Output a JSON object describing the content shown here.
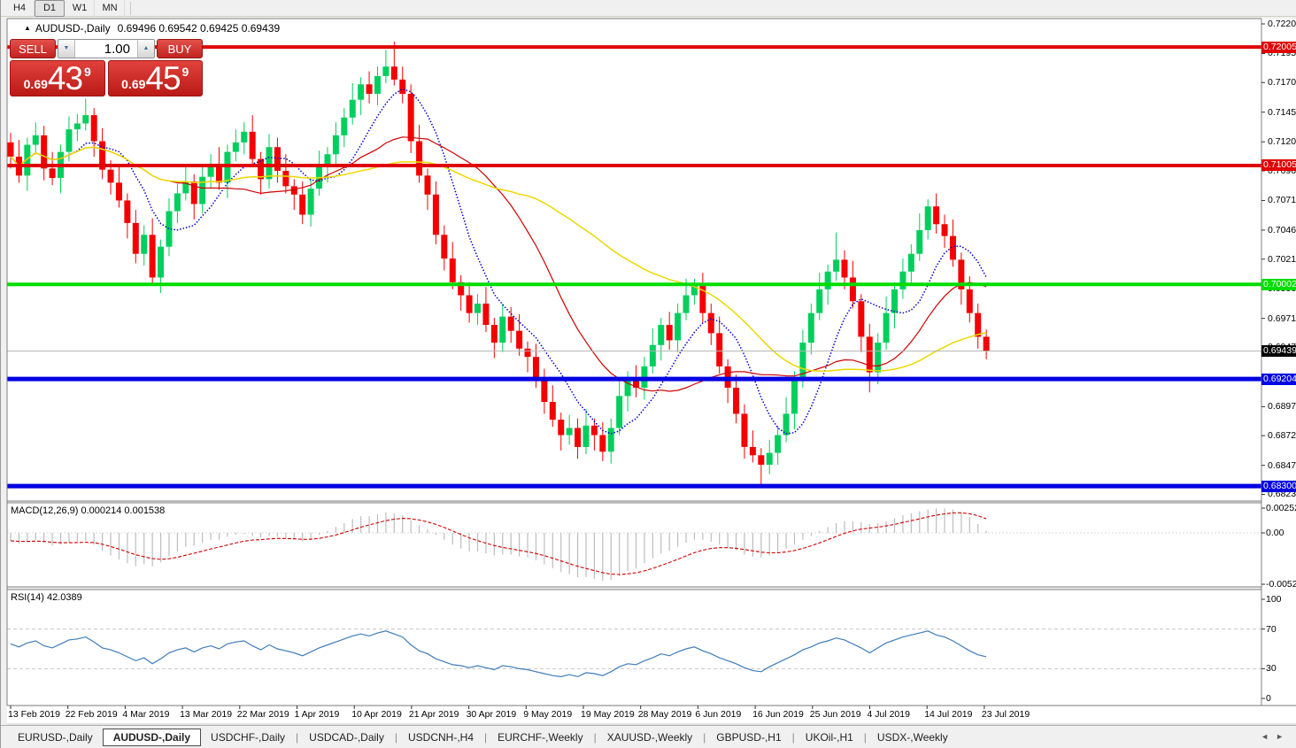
{
  "toolbar": {
    "timeframes": [
      {
        "label": "H4",
        "active": false
      },
      {
        "label": "D1",
        "active": true
      },
      {
        "label": "W1",
        "active": false
      },
      {
        "label": "MN",
        "active": false
      }
    ]
  },
  "chart_title": {
    "marker": "▲",
    "symbol": "AUDUSD-,Daily",
    "ohlc": "0.69496 0.69542 0.69425 0.69439"
  },
  "indicators": {
    "macd_label": "MACD(12,26,9) 0.000214 0.001538",
    "rsi_label": "RSI(14) 42.0389"
  },
  "trade_panel": {
    "sell_label": "SELL",
    "buy_label": "BUY",
    "volume": "1.00",
    "spinner_down": "▼",
    "spinner_up": "▲",
    "sell_price": {
      "prefix": "0.69",
      "main": "43",
      "sup": "9"
    },
    "buy_price": {
      "prefix": "0.69",
      "main": "45",
      "sup": "9"
    }
  },
  "tabs": {
    "items": [
      {
        "label": "EURUSD-,Daily",
        "active": false
      },
      {
        "label": "AUDUSD-,Daily",
        "active": true
      },
      {
        "label": "USDCHF-,Daily",
        "active": false
      },
      {
        "label": "USDCAD-,Daily",
        "active": false
      },
      {
        "label": "USDCNH-,H4",
        "active": false
      },
      {
        "label": "EURCHF-,Weekly",
        "active": false
      },
      {
        "label": "XAUUSD-,Weekly",
        "active": false
      },
      {
        "label": "GBPUSD-,H1",
        "active": false
      },
      {
        "label": "UKOil-,H1",
        "active": false
      },
      {
        "label": "USDX-,Weekly",
        "active": false
      }
    ],
    "scroll_left": "◄",
    "scroll_right": "►"
  },
  "chart_data": {
    "type": "candlestick",
    "symbol": "AUDUSD",
    "timeframe": "Daily",
    "colors": {
      "bull": "#00cf5d",
      "bear": "#f40000",
      "ma_fast": "#0000c8",
      "ma_mid": "#d00000",
      "ma_slow": "#ecd800",
      "macd_hist": "#bdbdbd",
      "macd_signal": "#d00000",
      "rsi": "#3f7cba",
      "level_red": "#e00000",
      "level_green": "#00dd00",
      "level_blue": "#0000e2",
      "current_line": "#b4b4b4",
      "current_badge": "#000000"
    },
    "y_ticks": [
      "0.72200",
      "0.71950",
      "0.71705",
      "0.71455",
      "0.71205",
      "0.70960",
      "0.70710",
      "0.70460",
      "0.70215",
      "0.69965",
      "0.69715",
      "0.69470",
      "0.69220",
      "0.68970",
      "0.68725",
      "0.68475",
      "0.68230"
    ],
    "x_tick_labels": [
      "13 Feb 2019",
      "22 Feb 2019",
      "4 Mar 2019",
      "13 Mar 2019",
      "22 Mar 2019",
      "1 Apr 2019",
      "10 Apr 2019",
      "21 Apr 2019",
      "30 Apr 2019",
      "9 May 2019",
      "19 May 2019",
      "28 May 2019",
      "6 Jun 2019",
      "16 Jun 2019",
      "25 Jun 2019",
      "4 Jul 2019",
      "14 Jul 2019",
      "23 Jul 2019"
    ],
    "price_levels": [
      {
        "label": "0.72005",
        "price": 0.72005,
        "color": "#e00000",
        "width": 4
      },
      {
        "label": "0.71005",
        "price": 0.71005,
        "color": "#e00000",
        "width": 4
      },
      {
        "label": "0.70002",
        "price": 0.70002,
        "color": "#00dd00",
        "width": 4
      },
      {
        "label": "0.69204",
        "price": 0.69204,
        "color": "#0000e2",
        "width": 5
      },
      {
        "label": "0.68300",
        "price": 0.683,
        "color": "#0000e2",
        "width": 5
      }
    ],
    "current_price": {
      "label": "0.69439",
      "price": 0.69439
    },
    "moving_averages": [
      {
        "period": 8,
        "color": "#0000c8",
        "style": "dotted"
      },
      {
        "period": 20,
        "color": "#d00000",
        "style": "solid"
      },
      {
        "period": 45,
        "color": "#ecd800",
        "style": "solid"
      }
    ],
    "candles": [
      [
        0.712,
        0.7128,
        0.7098,
        0.7108
      ],
      [
        0.7108,
        0.7122,
        0.7086,
        0.7092
      ],
      [
        0.7092,
        0.7124,
        0.7079,
        0.7118
      ],
      [
        0.7118,
        0.7137,
        0.711,
        0.7126
      ],
      [
        0.7126,
        0.7134,
        0.7088,
        0.7098
      ],
      [
        0.7098,
        0.7112,
        0.7084,
        0.709
      ],
      [
        0.709,
        0.7118,
        0.7077,
        0.7112
      ],
      [
        0.7112,
        0.7142,
        0.7104,
        0.7131
      ],
      [
        0.7131,
        0.7144,
        0.7121,
        0.7136
      ],
      [
        0.7136,
        0.7157,
        0.713,
        0.7143
      ],
      [
        0.7143,
        0.7149,
        0.7108,
        0.7121
      ],
      [
        0.7121,
        0.7132,
        0.7089,
        0.7097
      ],
      [
        0.7097,
        0.7105,
        0.7076,
        0.7086
      ],
      [
        0.7086,
        0.71,
        0.7065,
        0.7071
      ],
      [
        0.7071,
        0.7077,
        0.7039,
        0.7052
      ],
      [
        0.7052,
        0.7063,
        0.7018,
        0.7026
      ],
      [
        0.7026,
        0.705,
        0.7016,
        0.7042
      ],
      [
        0.7042,
        0.7056,
        0.7,
        0.7006
      ],
      [
        0.7006,
        0.7038,
        0.6993,
        0.7032
      ],
      [
        0.7032,
        0.7073,
        0.7024,
        0.7062
      ],
      [
        0.7062,
        0.7085,
        0.7052,
        0.7077
      ],
      [
        0.7077,
        0.7101,
        0.7071,
        0.7087
      ],
      [
        0.7087,
        0.7093,
        0.7055,
        0.7068
      ],
      [
        0.7068,
        0.7102,
        0.706,
        0.7091
      ],
      [
        0.7091,
        0.711,
        0.7081,
        0.7102
      ],
      [
        0.7102,
        0.7116,
        0.708,
        0.7086
      ],
      [
        0.7086,
        0.7118,
        0.7073,
        0.7112
      ],
      [
        0.7112,
        0.7131,
        0.7104,
        0.712
      ],
      [
        0.712,
        0.7137,
        0.711,
        0.7129
      ],
      [
        0.7129,
        0.7143,
        0.71,
        0.7106
      ],
      [
        0.7106,
        0.7112,
        0.7076,
        0.7089
      ],
      [
        0.7089,
        0.7127,
        0.7081,
        0.7116
      ],
      [
        0.7116,
        0.7124,
        0.7086,
        0.7096
      ],
      [
        0.7096,
        0.711,
        0.7077,
        0.7083
      ],
      [
        0.7083,
        0.7089,
        0.7063,
        0.7076
      ],
      [
        0.7076,
        0.7087,
        0.7051,
        0.7059
      ],
      [
        0.7059,
        0.7089,
        0.7049,
        0.7081
      ],
      [
        0.7081,
        0.7113,
        0.7075,
        0.7099
      ],
      [
        0.7099,
        0.7116,
        0.7086,
        0.711
      ],
      [
        0.711,
        0.7137,
        0.7102,
        0.7126
      ],
      [
        0.7126,
        0.7149,
        0.7116,
        0.7141
      ],
      [
        0.7141,
        0.717,
        0.7135,
        0.7156
      ],
      [
        0.7156,
        0.7175,
        0.7143,
        0.7169
      ],
      [
        0.7169,
        0.718,
        0.7153,
        0.7161
      ],
      [
        0.7161,
        0.7184,
        0.7151,
        0.7176
      ],
      [
        0.7176,
        0.7198,
        0.717,
        0.7184
      ],
      [
        0.7184,
        0.7205,
        0.7168,
        0.7173
      ],
      [
        0.7173,
        0.7184,
        0.7153,
        0.7161
      ],
      [
        0.7161,
        0.7169,
        0.7111,
        0.7121
      ],
      [
        0.7121,
        0.7135,
        0.7086,
        0.7092
      ],
      [
        0.7092,
        0.7098,
        0.7063,
        0.7076
      ],
      [
        0.7076,
        0.7087,
        0.7034,
        0.7042
      ],
      [
        0.7042,
        0.705,
        0.7012,
        0.7022
      ],
      [
        0.7022,
        0.7036,
        0.6996,
        0.7002
      ],
      [
        0.7002,
        0.7008,
        0.6978,
        0.6991
      ],
      [
        0.6991,
        0.7002,
        0.6968,
        0.6976
      ],
      [
        0.6976,
        0.6992,
        0.6966,
        0.6984
      ],
      [
        0.6984,
        0.6998,
        0.696,
        0.6966
      ],
      [
        0.6966,
        0.6972,
        0.6938,
        0.6951
      ],
      [
        0.6951,
        0.6984,
        0.6943,
        0.6973
      ],
      [
        0.6973,
        0.6981,
        0.6951,
        0.6961
      ],
      [
        0.6961,
        0.6975,
        0.694,
        0.6946
      ],
      [
        0.6946,
        0.6952,
        0.6926,
        0.6939
      ],
      [
        0.6939,
        0.695,
        0.6913,
        0.6921
      ],
      [
        0.6921,
        0.6929,
        0.6891,
        0.6901
      ],
      [
        0.6901,
        0.6915,
        0.688,
        0.6886
      ],
      [
        0.6886,
        0.6892,
        0.686,
        0.6873
      ],
      [
        0.6873,
        0.689,
        0.6865,
        0.6879
      ],
      [
        0.6879,
        0.6887,
        0.6853,
        0.6863
      ],
      [
        0.6863,
        0.6895,
        0.6857,
        0.6881
      ],
      [
        0.6881,
        0.6887,
        0.686,
        0.6873
      ],
      [
        0.6873,
        0.6884,
        0.6851,
        0.6859
      ],
      [
        0.6859,
        0.6887,
        0.6849,
        0.6879
      ],
      [
        0.6879,
        0.692,
        0.6873,
        0.6906
      ],
      [
        0.6906,
        0.6927,
        0.6893,
        0.6921
      ],
      [
        0.6921,
        0.6932,
        0.6905,
        0.6913
      ],
      [
        0.6913,
        0.6939,
        0.6903,
        0.6931
      ],
      [
        0.6931,
        0.6963,
        0.6925,
        0.6949
      ],
      [
        0.6949,
        0.6972,
        0.6936,
        0.6966
      ],
      [
        0.6966,
        0.6977,
        0.6945,
        0.6953
      ],
      [
        0.6953,
        0.6984,
        0.6943,
        0.6976
      ],
      [
        0.6976,
        0.7005,
        0.697,
        0.6991
      ],
      [
        0.6991,
        0.7005,
        0.6983,
        0.6999
      ],
      [
        0.6999,
        0.701,
        0.6968,
        0.6976
      ],
      [
        0.6976,
        0.6984,
        0.6949,
        0.6959
      ],
      [
        0.6959,
        0.6973,
        0.6925,
        0.6931
      ],
      [
        0.6931,
        0.6937,
        0.69,
        0.6913
      ],
      [
        0.6913,
        0.6924,
        0.6883,
        0.6891
      ],
      [
        0.6891,
        0.6899,
        0.6853,
        0.6863
      ],
      [
        0.6863,
        0.6877,
        0.685,
        0.6856
      ],
      [
        0.6856,
        0.6862,
        0.6831,
        0.6848
      ],
      [
        0.6848,
        0.6869,
        0.684,
        0.6858
      ],
      [
        0.6858,
        0.6881,
        0.6848,
        0.6873
      ],
      [
        0.6873,
        0.6905,
        0.6867,
        0.6891
      ],
      [
        0.6891,
        0.6927,
        0.6878,
        0.6921
      ],
      [
        0.6921,
        0.6962,
        0.6913,
        0.6951
      ],
      [
        0.6951,
        0.6984,
        0.6941,
        0.6976
      ],
      [
        0.6976,
        0.701,
        0.697,
        0.6996
      ],
      [
        0.6996,
        0.7017,
        0.6983,
        0.7011
      ],
      [
        0.7011,
        0.7044,
        0.7003,
        0.7021
      ],
      [
        0.7021,
        0.7029,
        0.6996,
        0.7006
      ],
      [
        0.7006,
        0.702,
        0.698,
        0.6986
      ],
      [
        0.6986,
        0.6992,
        0.6943,
        0.6956
      ],
      [
        0.6956,
        0.6967,
        0.6909,
        0.6926
      ],
      [
        0.6926,
        0.6959,
        0.6916,
        0.6951
      ],
      [
        0.6951,
        0.699,
        0.6945,
        0.6976
      ],
      [
        0.6976,
        0.7002,
        0.6963,
        0.6996
      ],
      [
        0.6996,
        0.7022,
        0.6988,
        0.7011
      ],
      [
        0.7011,
        0.7034,
        0.7001,
        0.7026
      ],
      [
        0.7026,
        0.706,
        0.702,
        0.7046
      ],
      [
        0.7046,
        0.7072,
        0.7038,
        0.7066
      ],
      [
        0.7066,
        0.7077,
        0.7043,
        0.7051
      ],
      [
        0.7051,
        0.7059,
        0.7031,
        0.7041
      ],
      [
        0.7041,
        0.7055,
        0.7015,
        0.7021
      ],
      [
        0.7021,
        0.7027,
        0.6983,
        0.6996
      ],
      [
        0.6996,
        0.7007,
        0.6968,
        0.6976
      ],
      [
        0.6976,
        0.6984,
        0.6946,
        0.6956
      ],
      [
        0.6956,
        0.6962,
        0.6937,
        0.69439
      ]
    ],
    "macd": {
      "params": "12,26,9",
      "axis_ticks": [
        {
          "label": "0.002522",
          "value": 0.002522
        },
        {
          "label": "0.00",
          "value": 0
        },
        {
          "label": "-0.005234",
          "value": -0.005234
        }
      ],
      "signal_period": 9,
      "main": [
        -0.0008,
        -0.0011,
        -0.0009,
        -0.0007,
        -0.001,
        -0.0013,
        -0.0012,
        -0.001,
        -0.0009,
        -0.0008,
        -0.0012,
        -0.0018,
        -0.0023,
        -0.0027,
        -0.0031,
        -0.0034,
        -0.0032,
        -0.0034,
        -0.003,
        -0.0024,
        -0.0019,
        -0.0014,
        -0.0013,
        -0.001,
        -0.0007,
        -0.0007,
        -0.0004,
        -0.0002,
        -0.0001,
        -0.0003,
        -0.0005,
        -0.0003,
        -0.0004,
        -0.0006,
        -0.0007,
        -0.0009,
        -0.0006,
        -0.0002,
        0.0002,
        0.0006,
        0.001,
        0.0014,
        0.0017,
        0.0017,
        0.0019,
        0.0021,
        0.002,
        0.0018,
        0.0013,
        0.0008,
        0.0004,
        -0.0002,
        -0.0007,
        -0.0012,
        -0.0016,
        -0.0019,
        -0.0019,
        -0.0021,
        -0.0023,
        -0.0022,
        -0.0022,
        -0.0024,
        -0.0025,
        -0.0028,
        -0.0032,
        -0.0036,
        -0.004,
        -0.0042,
        -0.0045,
        -0.0045,
        -0.0047,
        -0.0049,
        -0.0048,
        -0.0044,
        -0.0039,
        -0.0036,
        -0.0031,
        -0.0026,
        -0.0021,
        -0.0018,
        -0.0014,
        -0.001,
        -0.0007,
        -0.0007,
        -0.0009,
        -0.0012,
        -0.0015,
        -0.0018,
        -0.0022,
        -0.0024,
        -0.0025,
        -0.0023,
        -0.002,
        -0.0016,
        -0.0012,
        -0.0007,
        -0.0003,
        0.0002,
        0.0006,
        0.001,
        0.0012,
        0.0012,
        0.0011,
        0.0009,
        0.001,
        0.0012,
        0.0015,
        0.0018,
        0.002,
        0.0022,
        0.0024,
        0.0025,
        0.0025,
        0.0024,
        0.0021,
        0.0016,
        0.0009,
        0.000214
      ]
    },
    "rsi": {
      "period": 14,
      "axis_ticks": [
        {
          "label": "100",
          "value": 100
        },
        {
          "label": "70",
          "value": 70
        },
        {
          "label": "30",
          "value": 30
        },
        {
          "label": "0",
          "value": 0
        }
      ],
      "levels": [
        70,
        30
      ],
      "values": [
        55,
        52,
        56,
        58,
        53,
        51,
        55,
        59,
        60,
        62,
        57,
        51,
        49,
        46,
        42,
        38,
        41,
        35,
        40,
        46,
        49,
        51,
        47,
        51,
        53,
        50,
        55,
        57,
        58,
        53,
        49,
        54,
        50,
        48,
        46,
        43,
        47,
        51,
        54,
        57,
        60,
        63,
        65,
        63,
        66,
        68,
        65,
        62,
        54,
        48,
        45,
        40,
        37,
        34,
        33,
        31,
        33,
        31,
        29,
        33,
        32,
        30,
        29,
        27,
        25,
        23,
        22,
        24,
        22,
        26,
        25,
        23,
        27,
        32,
        35,
        34,
        38,
        41,
        45,
        43,
        47,
        50,
        52,
        48,
        45,
        41,
        38,
        35,
        31,
        28,
        27,
        32,
        36,
        40,
        44,
        49,
        52,
        56,
        58,
        61,
        59,
        55,
        51,
        46,
        51,
        56,
        59,
        62,
        64,
        66,
        68,
        64,
        62,
        58,
        53,
        48,
        44,
        42.04
      ]
    }
  }
}
